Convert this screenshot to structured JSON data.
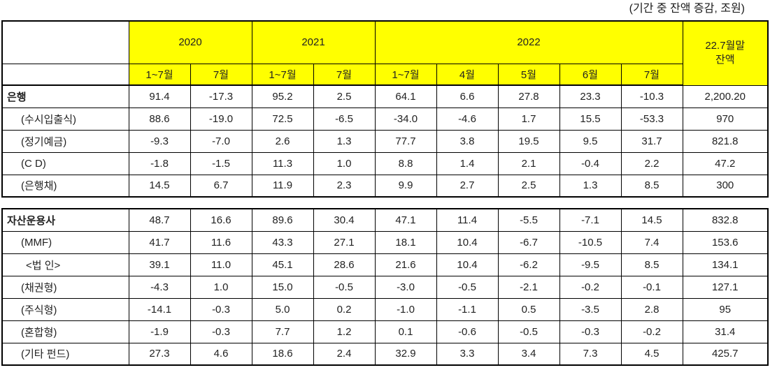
{
  "caption": "(기간 중 잔액 증감, 조원)",
  "accent_color": "#FFFF00",
  "header": {
    "groups": [
      {
        "label": "2020"
      },
      {
        "label": "2021"
      },
      {
        "label": "2022"
      }
    ],
    "subcols": [
      "1~7월",
      "7월",
      "1~7월",
      "7월",
      "1~7월",
      "4월",
      "5월",
      "6월",
      "7월"
    ],
    "balance_line1": "22.7월말",
    "balance_line2": "잔액"
  },
  "table1": {
    "rows": [
      {
        "label": "은행",
        "bold": true,
        "indent": 0,
        "values": [
          "91.4",
          "-17.3",
          "95.2",
          "2.5",
          "64.1",
          "6.6",
          "27.8",
          "23.3",
          "-10.3",
          "2,200.20"
        ]
      },
      {
        "label": "(수시입출식)",
        "bold": false,
        "indent": 1,
        "values": [
          "88.6",
          "-19.0",
          "72.5",
          "-6.5",
          "-34.0",
          "-4.6",
          "1.7",
          "15.5",
          "-53.3",
          "970"
        ]
      },
      {
        "label": "(정기예금)",
        "bold": false,
        "indent": 1,
        "values": [
          "-9.3",
          "-7.0",
          "2.6",
          "1.3",
          "77.7",
          "3.8",
          "19.5",
          "9.5",
          "31.7",
          "821.8"
        ]
      },
      {
        "label": "(C D)",
        "bold": false,
        "indent": 1,
        "values": [
          "-1.8",
          "-1.5",
          "11.3",
          "1.0",
          "8.8",
          "1.4",
          "2.1",
          "-0.4",
          "2.2",
          "47.2"
        ]
      },
      {
        "label": "(은행채)",
        "bold": false,
        "indent": 1,
        "values": [
          "14.5",
          "6.7",
          "11.9",
          "2.3",
          "9.9",
          "2.7",
          "2.5",
          "1.3",
          "8.5",
          "300"
        ]
      }
    ]
  },
  "table2": {
    "rows": [
      {
        "label": "자산운용사",
        "bold": true,
        "indent": 0,
        "values": [
          "48.7",
          "16.6",
          "89.6",
          "30.4",
          "47.1",
          "11.4",
          "-5.5",
          "-7.1",
          "14.5",
          "832.8"
        ]
      },
      {
        "label": "(MMF)",
        "bold": false,
        "indent": 1,
        "values": [
          "41.7",
          "11.6",
          "43.3",
          "27.1",
          "18.1",
          "10.4",
          "-6.7",
          "-10.5",
          "7.4",
          "153.6"
        ]
      },
      {
        "label": "<법 인>",
        "bold": false,
        "indent": 2,
        "values": [
          "39.1",
          "11.0",
          "45.1",
          "28.6",
          "21.6",
          "10.4",
          "-6.2",
          "-9.5",
          "8.5",
          "134.1"
        ]
      },
      {
        "label": "(채권형)",
        "bold": false,
        "indent": 1,
        "values": [
          "-4.3",
          "1.0",
          "15.0",
          "-0.5",
          "-3.0",
          "-0.5",
          "-2.1",
          "-0.2",
          "-0.1",
          "127.1"
        ]
      },
      {
        "label": "(주식형)",
        "bold": false,
        "indent": 1,
        "values": [
          "-14.1",
          "-0.3",
          "5.0",
          "0.2",
          "-1.0",
          "-1.1",
          "0.5",
          "-3.5",
          "2.8",
          "95"
        ]
      },
      {
        "label": "(혼합형)",
        "bold": false,
        "indent": 1,
        "values": [
          "-1.9",
          "-0.3",
          "7.7",
          "1.2",
          "0.1",
          "-0.6",
          "-0.5",
          "-0.3",
          "-0.2",
          "31.4"
        ]
      },
      {
        "label": "(기타 펀드)",
        "bold": false,
        "indent": 1,
        "values": [
          "27.3",
          "4.6",
          "18.6",
          "2.4",
          "32.9",
          "3.3",
          "3.4",
          "7.3",
          "4.5",
          "425.7"
        ]
      }
    ]
  }
}
